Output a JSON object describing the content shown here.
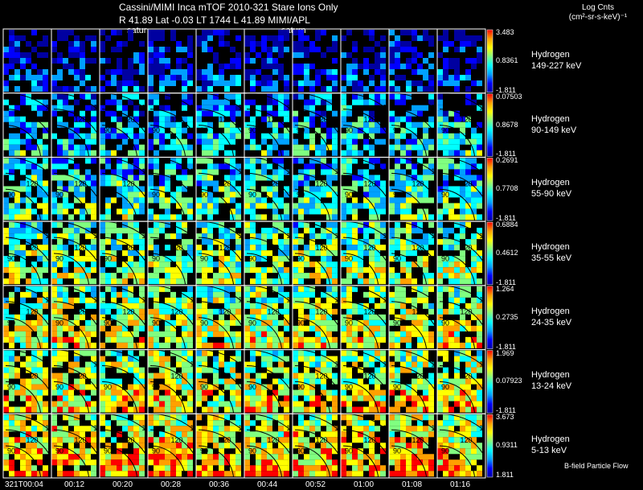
{
  "header": {
    "title": "Cassini/MIMI Inca mTOF  2010-321    Stare    Ions Only",
    "ephemeris": "R        41.89 Lat -0.03 LT 1744 L         41.89  MIMI/APL",
    "center_label_a": "satur",
    "center_label_b": "saturn"
  },
  "units": {
    "line1": "Log Cnts",
    "line2": "(cm²-sr-s-keV)⁻¹"
  },
  "footer_note": "B-field Particle Flow",
  "colors": {
    "background": "#000000",
    "colormap": [
      "#0000a0",
      "#0000ff",
      "#00a0ff",
      "#00ffff",
      "#80ff80",
      "#ffff00",
      "#ffa000",
      "#ff0000"
    ]
  },
  "chart_data": {
    "type": "heatmap",
    "time_ticks": [
      "321T00:04",
      "00:12",
      "00:20",
      "00:28",
      "00:36",
      "00:44",
      "00:52",
      "01:00",
      "01:08",
      "01:16"
    ],
    "contour_labels": [
      "90",
      "120",
      "150"
    ],
    "rows": [
      {
        "species": "Hydrogen",
        "energy": "149-227 keV",
        "cbar_max": "3.483",
        "cbar_mid": "0.8361",
        "cbar_min": "-1.811",
        "level": 0.15
      },
      {
        "species": "Hydrogen",
        "energy": "90-149 keV",
        "cbar_max": "0.07503",
        "cbar_mid": "0.8678",
        "cbar_min": "-1.811",
        "level": 0.35
      },
      {
        "species": "Hydrogen",
        "energy": "55-90 keV",
        "cbar_max": "0.2691",
        "cbar_mid": "0.7708",
        "cbar_min": "-1.811",
        "level": 0.45
      },
      {
        "species": "Hydrogen",
        "energy": "35-55 keV",
        "cbar_max": "0.6884",
        "cbar_mid": "0.4612",
        "cbar_min": "-1.811",
        "level": 0.55
      },
      {
        "species": "Hydrogen",
        "energy": "24-35 keV",
        "cbar_max": "1.264",
        "cbar_mid": "0.2735",
        "cbar_min": "-1.811",
        "level": 0.62
      },
      {
        "species": "Hydrogen",
        "energy": "13-24 keV",
        "cbar_max": "1.969",
        "cbar_mid": "0.07923",
        "cbar_min": "-1.811",
        "level": 0.65
      },
      {
        "species": "Hydrogen",
        "energy": "5-13 keV",
        "cbar_max": "3.673",
        "cbar_mid": "0.9311",
        "cbar_min": "1.811",
        "level": 0.72
      }
    ]
  }
}
